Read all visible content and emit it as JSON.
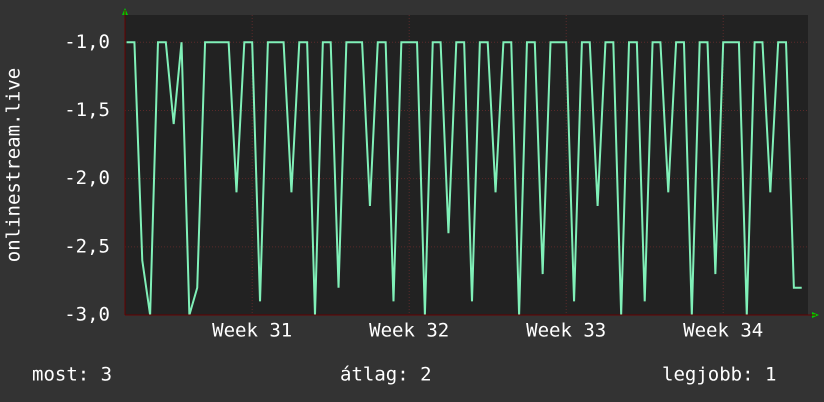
{
  "chart_data": {
    "type": "line",
    "y_label": "onlinestream.live",
    "x": [
      30.2,
      30.25,
      30.3,
      30.35,
      30.4,
      30.45,
      30.5,
      30.55,
      30.6,
      30.65,
      30.7,
      30.75,
      30.8,
      30.85,
      30.9,
      30.95,
      31,
      31.05,
      31.1,
      31.15,
      31.2,
      31.25,
      31.3,
      31.35,
      31.4,
      31.45,
      31.5,
      31.55,
      31.6,
      31.65,
      31.7,
      31.75,
      31.8,
      31.85,
      31.9,
      31.95,
      32,
      32.05,
      32.1,
      32.15,
      32.2,
      32.25,
      32.3,
      32.35,
      32.4,
      32.45,
      32.5,
      32.55,
      32.6,
      32.65,
      32.7,
      32.75,
      32.8,
      32.85,
      32.9,
      32.95,
      33,
      33.05,
      33.1,
      33.15,
      33.2,
      33.25,
      33.3,
      33.35,
      33.4,
      33.45,
      33.5,
      33.55,
      33.6,
      33.65,
      33.7,
      33.75,
      33.8,
      33.85,
      33.9,
      33.95,
      34,
      34.05,
      34.1,
      34.15,
      34.2,
      34.25,
      34.3,
      34.35,
      34.4,
      34.45,
      34.5
    ],
    "series": [
      {
        "color": "#80f0b8",
        "values": [
          -1,
          -1,
          -2.6,
          -3,
          -1,
          -1,
          -1.6,
          -1,
          -3,
          -2.8,
          -1,
          -1,
          -1,
          -1,
          -2.1,
          -1,
          -1,
          -2.9,
          -1,
          -1,
          -1,
          -2.1,
          -1,
          -1,
          -3,
          -1,
          -1,
          -2.8,
          -1,
          -1,
          -1,
          -2.2,
          -1,
          -1,
          -2.9,
          -1,
          -1,
          -1,
          -3,
          -1,
          -1,
          -2.4,
          -1,
          -1,
          -2.9,
          -1,
          -1,
          -2.1,
          -1,
          -1,
          -3,
          -1,
          -1,
          -2.7,
          -1,
          -1,
          -1,
          -2.9,
          -1,
          -1,
          -2.2,
          -1,
          -1,
          -3,
          -1,
          -1,
          -2.9,
          -1,
          -1,
          -2.1,
          -1,
          -1,
          -3,
          -1,
          -1,
          -2.7,
          -1,
          -1,
          -1,
          -3,
          -1,
          -1,
          -2.1,
          -1,
          -1,
          -2.8,
          -2.8
        ]
      }
    ],
    "xlim": [
      30.19,
      34.54
    ],
    "xticks": [
      {
        "value": 31,
        "label": "Week 31"
      },
      {
        "value": 32,
        "label": "Week 32"
      },
      {
        "value": 33,
        "label": "Week 33"
      },
      {
        "value": 34,
        "label": "Week 34"
      }
    ],
    "ylim": [
      -3,
      -0.8
    ],
    "yticks": [
      {
        "value": -3,
        "label": "-3,0"
      },
      {
        "value": -2.5,
        "label": "-2,5"
      },
      {
        "value": -2,
        "label": "-2,0"
      },
      {
        "value": -1.5,
        "label": "-1,5"
      },
      {
        "value": -1,
        "label": "-1,0"
      }
    ],
    "grid": true,
    "annotations": [
      "most: 3",
      "átlag: 2",
      "legjobb: 1"
    ]
  }
}
